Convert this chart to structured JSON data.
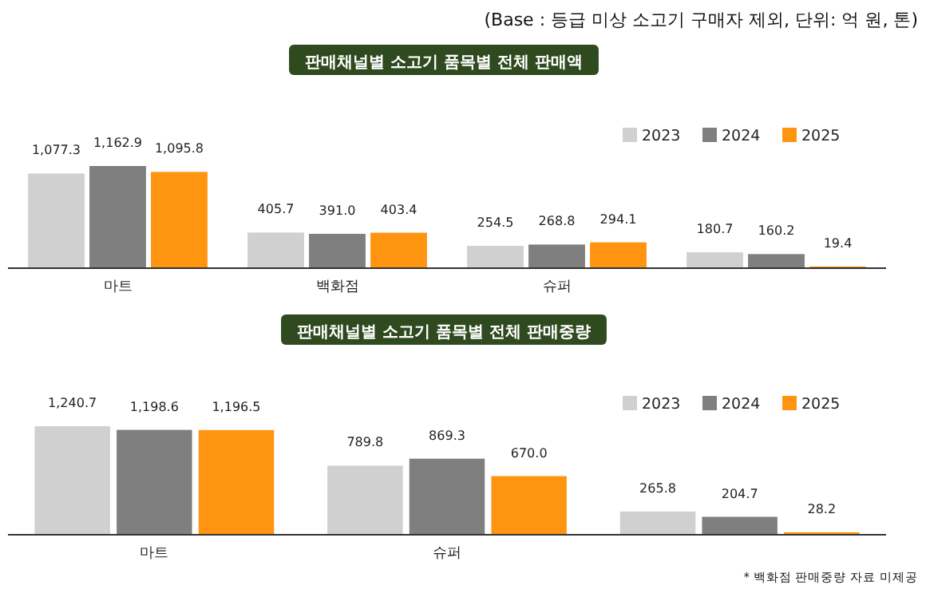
{
  "chart_data": [
    {
      "type": "bar",
      "title": "판매채널별 소고기 품목별 전체 판매액",
      "annotations": [
        "(Base : 등급 미상 소고기 구매자 제외, 단위: 억 원, 톤)"
      ],
      "categories": [
        "마트",
        "백화점",
        "슈퍼",
        null
      ],
      "legend": "top right",
      "series": [
        {
          "name": "2023",
          "color": "#d0d0d0",
          "values": [
            1077.3,
            405.7,
            254.5,
            180.7
          ],
          "value_labels": [
            "1,077.3",
            "405.7",
            "254.5",
            "180.7"
          ]
        },
        {
          "name": "2024",
          "color": "#7f7f7f",
          "values": [
            1162.9,
            391.0,
            268.8,
            160.2
          ],
          "value_labels": [
            "1,162.9",
            "391.0",
            "268.8",
            "160.2"
          ]
        },
        {
          "name": "2025",
          "color": "#ff9410",
          "values": [
            1095.8,
            403.4,
            294.1,
            19.4
          ],
          "value_labels": [
            "1,095.8",
            "403.4",
            "294.1",
            "19.4"
          ]
        }
      ]
    },
    {
      "type": "bar",
      "title": "판매채널별 소고기 품목별 전체 판매중량",
      "annotations": [
        "* 백화점 판매중량 자료 미제공"
      ],
      "categories": [
        "마트",
        "슈퍼",
        null
      ],
      "legend": "top right",
      "series": [
        {
          "name": "2023",
          "color": "#d0d0d0",
          "values": [
            1240.7,
            789.8,
            265.8
          ],
          "value_labels": [
            "1,240.7",
            "789.8",
            "265.8"
          ]
        },
        {
          "name": "2024",
          "color": "#7f7f7f",
          "values": [
            1198.6,
            869.3,
            204.7
          ],
          "value_labels": [
            "1,198.6",
            "869.3",
            "204.7"
          ]
        },
        {
          "name": "2025",
          "color": "#ff9410",
          "values": [
            1196.5,
            670.0,
            28.2
          ],
          "value_labels": [
            "1,196.5",
            "670.0",
            "28.2"
          ]
        }
      ]
    }
  ]
}
